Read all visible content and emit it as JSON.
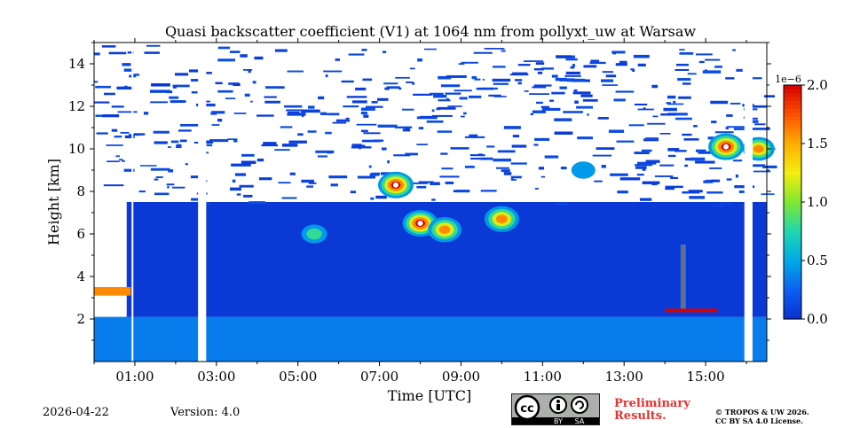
{
  "chart_data": {
    "type": "heatmap",
    "title": "Quasi backscatter coefficient (V1) at 1064 nm from pollyxt_uw at Warsaw",
    "xlabel": "Time [UTC]",
    "ylabel": "Height [km]",
    "x_unit": "hours UTC",
    "xlim": [
      0.0,
      16.5
    ],
    "ylim": [
      0.0,
      15.0
    ],
    "xticks": [
      {
        "value": 1,
        "label": "01:00"
      },
      {
        "value": 3,
        "label": "03:00"
      },
      {
        "value": 5,
        "label": "05:00"
      },
      {
        "value": 7,
        "label": "07:00"
      },
      {
        "value": 9,
        "label": "09:00"
      },
      {
        "value": 11,
        "label": "11:00"
      },
      {
        "value": 13,
        "label": "13:00"
      },
      {
        "value": 15,
        "label": "15:00"
      }
    ],
    "yticks": [
      {
        "value": 2,
        "label": "2"
      },
      {
        "value": 4,
        "label": "4"
      },
      {
        "value": 6,
        "label": "6"
      },
      {
        "value": 8,
        "label": "8"
      },
      {
        "value": 10,
        "label": "10"
      },
      {
        "value": 12,
        "label": "12"
      },
      {
        "value": 14,
        "label": "14"
      }
    ],
    "colorbar": {
      "min": 0.0,
      "max": 2.0,
      "exponent_label": "1e−6",
      "ticks": [
        {
          "value": 0.0,
          "label": "0.0"
        },
        {
          "value": 0.5,
          "label": "0.5"
        },
        {
          "value": 1.0,
          "label": "1.0"
        },
        {
          "value": 1.5,
          "label": "1.5"
        },
        {
          "value": 2.0,
          "label": "2.0"
        }
      ],
      "colormap": [
        "#0a2fd0",
        "#0b5ff0",
        "#00a8e8",
        "#1fd6b0",
        "#7ee830",
        "#f2ee10",
        "#ffb000",
        "#ff5000",
        "#d60000"
      ]
    },
    "no_data_intervals": [
      [
        0.92,
        0.92
      ],
      [
        2.55,
        2.75
      ],
      [
        15.95,
        16.15
      ]
    ],
    "layers": [
      {
        "name": "boundary layer",
        "t_start": 0.0,
        "t_end": 16.5,
        "h_bottom": 0.0,
        "h_top": 2.1,
        "value": 0.35
      },
      {
        "name": "free troposphere aerosol",
        "t_start": 0.8,
        "t_end": 16.5,
        "h_bottom": 2.1,
        "h_top": 7.5,
        "value": 0.05
      },
      {
        "name": "early low layer",
        "t_start": 0.0,
        "t_end": 0.9,
        "h_bottom": 3.1,
        "h_top": 3.5,
        "value": 1.6
      }
    ],
    "features": [
      {
        "name": "mid-level cloud",
        "t": 5.4,
        "h": 6.0,
        "peak": 0.9
      },
      {
        "name": "mid-level cloud",
        "t": 7.4,
        "h": 8.3,
        "peak": 2.0
      },
      {
        "name": "mid-level cloud",
        "t": 8.0,
        "h": 6.5,
        "peak": 2.0
      },
      {
        "name": "mid-level cloud",
        "t": 8.6,
        "h": 6.2,
        "peak": 1.8
      },
      {
        "name": "mid-level cloud",
        "t": 10.0,
        "h": 6.7,
        "peak": 1.9
      },
      {
        "name": "small cloud",
        "t": 12.0,
        "h": 9.0,
        "peak": 0.7
      },
      {
        "name": "precipitation streak",
        "t": 14.45,
        "h_bottom": 2.4,
        "h_top": 5.5,
        "peak": 1.8
      },
      {
        "name": "cirrus",
        "t": 15.5,
        "h": 10.1,
        "peak": 2.0
      },
      {
        "name": "cirrus",
        "t": 16.3,
        "h": 10.0,
        "peak": 1.6
      }
    ],
    "low_cloud_base": [
      {
        "t_start": 14.0,
        "t_end": 15.3,
        "h": 2.4,
        "value": 2.0
      }
    ]
  },
  "footer": {
    "date": "2026-04-22",
    "version": "Version: 4.0",
    "license_badge": {
      "cc": "cc",
      "by": "BY",
      "sa": "SA"
    },
    "preliminary_line1": "Preliminary",
    "preliminary_line2": "Results.",
    "credit_line1": "© TROPOS & UW 2026.",
    "credit_line2": "CC BY SA 4.0 License."
  }
}
